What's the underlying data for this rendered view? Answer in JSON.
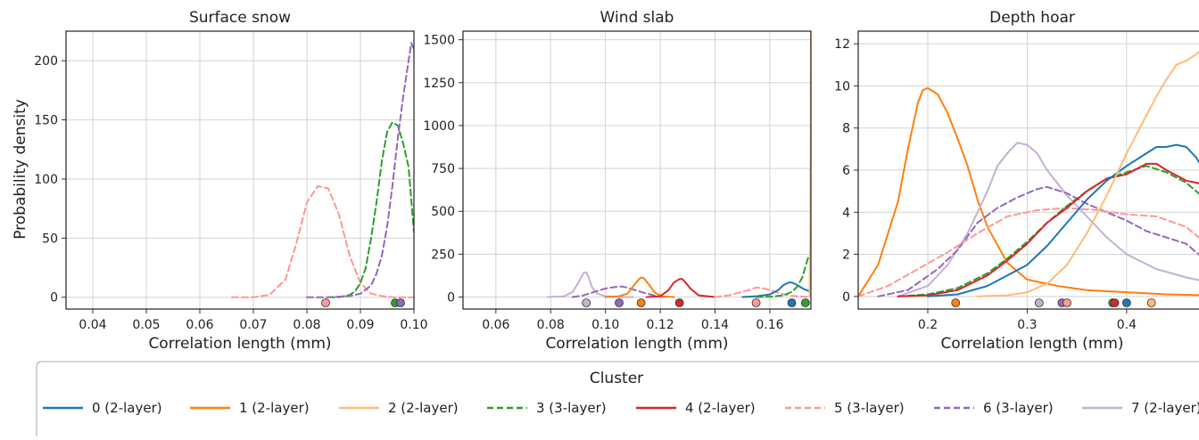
{
  "figure": {
    "ylabel": "Probability density",
    "legend_title": "Cluster"
  },
  "series_styles": [
    {
      "name": "0 (2-layer)",
      "color": "#1f77b4",
      "dash": "solid"
    },
    {
      "name": "1 (2-layer)",
      "color": "#ff7f0e",
      "dash": "solid"
    },
    {
      "name": "2 (2-layer)",
      "color": "#ffbb78",
      "dash": "solid"
    },
    {
      "name": "3 (3-layer)",
      "color": "#2ca02c",
      "dash": "dashed"
    },
    {
      "name": "4 (2-layer)",
      "color": "#d62728",
      "dash": "solid"
    },
    {
      "name": "5 (3-layer)",
      "color": "#ff9896",
      "dash": "dashed"
    },
    {
      "name": "6 (3-layer)",
      "color": "#9467bd",
      "dash": "dashed"
    },
    {
      "name": "7 (2-layer)",
      "color": "#c5b0d5",
      "dash": "solid"
    }
  ],
  "chart_data": [
    {
      "type": "line",
      "title": "Surface snow",
      "xlabel": "Correlation length (mm)",
      "ylabel": "Probability density",
      "xlim": [
        0.035,
        0.1
      ],
      "ylim": [
        -10,
        225
      ],
      "xticks": [
        "0.04",
        "0.05",
        "0.06",
        "0.07",
        "0.08",
        "0.09",
        "0.10"
      ],
      "yticks": [
        "0",
        "50",
        "100",
        "150",
        "200"
      ],
      "grid": true,
      "series": [
        {
          "cluster": 5,
          "x": [
            0.066,
            0.07,
            0.073,
            0.076,
            0.078,
            0.08,
            0.082,
            0.084,
            0.086,
            0.088,
            0.09,
            0.092,
            0.094,
            0.096,
            0.098,
            0.1
          ],
          "y": [
            0,
            0,
            2,
            15,
            45,
            80,
            94,
            92,
            70,
            35,
            12,
            3,
            1,
            0,
            0,
            0
          ],
          "marker": 0.0835
        },
        {
          "cluster": 3,
          "x": [
            0.084,
            0.086,
            0.088,
            0.089,
            0.09,
            0.091,
            0.092,
            0.093,
            0.094,
            0.095,
            0.096,
            0.097,
            0.098,
            0.099,
            0.1
          ],
          "y": [
            0,
            0,
            2,
            5,
            12,
            25,
            50,
            80,
            115,
            140,
            148,
            145,
            130,
            110,
            55
          ],
          "marker": 0.0965
        },
        {
          "cluster": 6,
          "x": [
            0.08,
            0.084,
            0.088,
            0.09,
            0.092,
            0.093,
            0.094,
            0.095,
            0.096,
            0.097,
            0.098,
            0.099,
            0.0995,
            0.1
          ],
          "y": [
            0,
            0,
            1,
            3,
            10,
            20,
            35,
            60,
            95,
            135,
            170,
            200,
            215,
            210
          ],
          "marker": 0.0975
        }
      ]
    },
    {
      "type": "line",
      "title": "Wind slab",
      "xlabel": "Correlation length (mm)",
      "ylabel": "",
      "xlim": [
        0.048,
        0.175
      ],
      "ylim": [
        -70,
        1550
      ],
      "xticks": [
        "0.06",
        "0.08",
        "0.10",
        "0.12",
        "0.14",
        "0.16"
      ],
      "yticks": [
        "0",
        "250",
        "500",
        "750",
        "1000",
        "1250",
        "1500"
      ],
      "grid": true,
      "series": [
        {
          "cluster": 7,
          "x": [
            0.079,
            0.085,
            0.088,
            0.09,
            0.092,
            0.093,
            0.094,
            0.095,
            0.097,
            0.1,
            0.105,
            0.11
          ],
          "y": [
            0,
            5,
            30,
            80,
            140,
            145,
            110,
            60,
            20,
            5,
            0,
            0
          ],
          "marker": 0.093
        },
        {
          "cluster": 6,
          "x": [
            0.088,
            0.092,
            0.096,
            0.1,
            0.104,
            0.106,
            0.108,
            0.11,
            0.114,
            0.118,
            0.122
          ],
          "y": [
            0,
            10,
            30,
            50,
            60,
            62,
            55,
            45,
            25,
            8,
            0
          ],
          "marker": 0.105
        },
        {
          "cluster": 1,
          "x": [
            0.1,
            0.105,
            0.108,
            0.11,
            0.112,
            0.113,
            0.114,
            0.116,
            0.118,
            0.121,
            0.125
          ],
          "y": [
            0,
            5,
            20,
            60,
            100,
            115,
            110,
            70,
            25,
            3,
            0
          ],
          "marker": 0.113
        },
        {
          "cluster": 4,
          "x": [
            0.115,
            0.12,
            0.123,
            0.125,
            0.127,
            0.128,
            0.129,
            0.131,
            0.134,
            0.14
          ],
          "y": [
            0,
            5,
            40,
            85,
            105,
            105,
            90,
            50,
            10,
            0
          ],
          "marker": 0.127
        },
        {
          "cluster": 5,
          "x": [
            0.14,
            0.145,
            0.15,
            0.153,
            0.155,
            0.158,
            0.161,
            0.164,
            0.167,
            0.17,
            0.175
          ],
          "y": [
            0,
            10,
            30,
            45,
            55,
            50,
            35,
            20,
            10,
            5,
            0
          ],
          "marker": 0.155
        },
        {
          "cluster": 0,
          "x": [
            0.15,
            0.155,
            0.16,
            0.163,
            0.165,
            0.167,
            0.168,
            0.17,
            0.172,
            0.175
          ],
          "y": [
            0,
            5,
            15,
            40,
            70,
            85,
            85,
            70,
            50,
            30
          ],
          "marker": 0.168
        },
        {
          "cluster": 3,
          "x": [
            0.155,
            0.16,
            0.165,
            0.168,
            0.17,
            0.172,
            0.173,
            0.174,
            0.175
          ],
          "y": [
            0,
            2,
            10,
            30,
            60,
            120,
            180,
            230,
            250
          ],
          "marker": 0.173
        },
        {
          "cluster": 2,
          "x": [
            0.1745,
            0.1748,
            0.175
          ],
          "y": [
            0,
            500,
            1550
          ],
          "marker": null
        }
      ]
    },
    {
      "type": "line",
      "title": "Depth hoar",
      "xlabel": "Correlation length (mm)",
      "ylabel": "",
      "xlim": [
        0.13,
        0.48
      ],
      "ylim": [
        -0.6,
        12.6
      ],
      "xticks": [
        "0.2",
        "0.3",
        "0.4"
      ],
      "yticks": [
        "0",
        "2",
        "4",
        "6",
        "8",
        "10",
        "12"
      ],
      "grid": true,
      "series": [
        {
          "cluster": 1,
          "x": [
            0.13,
            0.15,
            0.17,
            0.18,
            0.19,
            0.195,
            0.2,
            0.21,
            0.22,
            0.23,
            0.24,
            0.25,
            0.26,
            0.28,
            0.3,
            0.33,
            0.36,
            0.4,
            0.44,
            0.48
          ],
          "y": [
            0,
            1.5,
            4.5,
            7,
            9.2,
            9.8,
            9.9,
            9.6,
            8.7,
            7.5,
            6.2,
            4.6,
            3.3,
            1.6,
            0.8,
            0.5,
            0.3,
            0.2,
            0.1,
            0.05
          ],
          "marker": 0.228
        },
        {
          "cluster": 7,
          "x": [
            0.17,
            0.2,
            0.22,
            0.24,
            0.26,
            0.27,
            0.28,
            0.29,
            0.3,
            0.31,
            0.32,
            0.34,
            0.36,
            0.38,
            0.4,
            0.43,
            0.46,
            0.48
          ],
          "y": [
            0,
            0.5,
            1.5,
            3,
            5,
            6.2,
            6.8,
            7.3,
            7.2,
            6.8,
            6,
            4.8,
            3.8,
            2.8,
            2,
            1.3,
            0.9,
            0.7
          ],
          "marker": 0.312
        },
        {
          "cluster": 6,
          "x": [
            0.15,
            0.18,
            0.21,
            0.23,
            0.25,
            0.27,
            0.29,
            0.31,
            0.32,
            0.34,
            0.36,
            0.38,
            0.4,
            0.42,
            0.44,
            0.46,
            0.48
          ],
          "y": [
            0,
            0.3,
            1.3,
            2.2,
            3.5,
            4.2,
            4.7,
            5.1,
            5.2,
            4.9,
            4.4,
            4,
            3.6,
            3.1,
            2.8,
            2.5,
            1.7
          ],
          "marker": 0.335
        },
        {
          "cluster": 5,
          "x": [
            0.13,
            0.16,
            0.19,
            0.22,
            0.25,
            0.28,
            0.31,
            0.34,
            0.37,
            0.4,
            0.43,
            0.46,
            0.48
          ],
          "y": [
            0,
            0.5,
            1.3,
            2.1,
            3,
            3.8,
            4.1,
            4.2,
            4.1,
            3.9,
            3.8,
            3.3,
            2.5
          ],
          "marker": 0.34
        },
        {
          "cluster": 3,
          "x": [
            0.17,
            0.2,
            0.23,
            0.26,
            0.28,
            0.3,
            0.32,
            0.34,
            0.36,
            0.38,
            0.4,
            0.42,
            0.44,
            0.46,
            0.48
          ],
          "y": [
            0,
            0.1,
            0.4,
            1.1,
            1.8,
            2.6,
            3.5,
            4.3,
            5,
            5.6,
            5.9,
            6.2,
            5.9,
            5.4,
            4.6
          ],
          "marker": 0.386
        },
        {
          "cluster": 4,
          "x": [
            0.17,
            0.2,
            0.23,
            0.26,
            0.28,
            0.3,
            0.32,
            0.34,
            0.36,
            0.38,
            0.4,
            0.42,
            0.43,
            0.44,
            0.46,
            0.48
          ],
          "y": [
            0,
            0.05,
            0.3,
            1,
            1.7,
            2.5,
            3.5,
            4.2,
            5,
            5.6,
            5.8,
            6.3,
            6.3,
            6,
            5.5,
            5.3
          ],
          "marker": 0.388
        },
        {
          "cluster": 0,
          "x": [
            0.2,
            0.23,
            0.26,
            0.28,
            0.3,
            0.32,
            0.34,
            0.36,
            0.38,
            0.4,
            0.42,
            0.43,
            0.44,
            0.45,
            0.46,
            0.47,
            0.48
          ],
          "y": [
            0,
            0.1,
            0.5,
            1,
            1.5,
            2.4,
            3.5,
            4.6,
            5.5,
            6.2,
            6.8,
            7.1,
            7.1,
            7.2,
            7.1,
            6.6,
            5.8
          ],
          "marker": 0.4
        },
        {
          "cluster": 2,
          "x": [
            0.25,
            0.28,
            0.3,
            0.32,
            0.34,
            0.36,
            0.38,
            0.4,
            0.42,
            0.43,
            0.44,
            0.45,
            0.46,
            0.47,
            0.48
          ],
          "y": [
            0,
            0.05,
            0.2,
            0.6,
            1.5,
            3,
            4.8,
            6.8,
            8.6,
            9.5,
            10.3,
            11,
            11.2,
            11.5,
            12
          ],
          "marker": 0.425
        }
      ]
    }
  ]
}
